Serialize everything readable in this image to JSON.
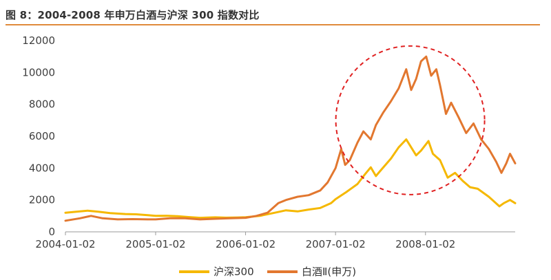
{
  "title": "图 8：2004-2008 年申万白酒与沪深 300 指数对比",
  "colors": {
    "title_rule": "#e08a3a",
    "circle": "#e02020"
  },
  "chart_data": {
    "type": "line",
    "title": "图 8：2004-2008 年申万白酒与沪深 300 指数对比",
    "xlabel": "",
    "ylabel": "",
    "x_ticks": [
      "2004-01-02",
      "2005-01-02",
      "2006-01-02",
      "2007-01-02",
      "2008-01-02"
    ],
    "y_ticks": [
      "0",
      "2000",
      "4000",
      "6000",
      "8000",
      "10000",
      "12000"
    ],
    "ylim": [
      0,
      12000
    ],
    "x_range": [
      "2004-01-02",
      "2008-12-31"
    ],
    "grid": false,
    "legend_position": "bottom",
    "annotation": "red dashed circle highlighting the 2007–2008 peak of 白酒Ⅱ(申万)",
    "series": [
      {
        "name": "沪深300",
        "color": "#f5b800",
        "points": [
          [
            "2004-01-02",
            1200
          ],
          [
            "2004-02-15",
            1260
          ],
          [
            "2004-04-01",
            1330
          ],
          [
            "2004-05-15",
            1260
          ],
          [
            "2004-07-01",
            1180
          ],
          [
            "2004-09-01",
            1120
          ],
          [
            "2004-10-15",
            1100
          ],
          [
            "2004-12-01",
            1050
          ],
          [
            "2005-01-02",
            1000
          ],
          [
            "2005-02-15",
            1010
          ],
          [
            "2005-04-01",
            980
          ],
          [
            "2005-05-15",
            930
          ],
          [
            "2005-07-01",
            880
          ],
          [
            "2005-09-01",
            910
          ],
          [
            "2005-10-15",
            890
          ],
          [
            "2005-12-01",
            900
          ],
          [
            "2006-01-02",
            920
          ],
          [
            "2006-03-01",
            1000
          ],
          [
            "2006-05-01",
            1200
          ],
          [
            "2006-06-15",
            1350
          ],
          [
            "2006-08-01",
            1280
          ],
          [
            "2006-09-15",
            1400
          ],
          [
            "2006-11-01",
            1500
          ],
          [
            "2006-12-15",
            1800
          ],
          [
            "2007-01-02",
            2050
          ],
          [
            "2007-02-15",
            2500
          ],
          [
            "2007-04-01",
            3000
          ],
          [
            "2007-05-01",
            3600
          ],
          [
            "2007-05-25",
            4050
          ],
          [
            "2007-06-15",
            3500
          ],
          [
            "2007-07-01",
            3800
          ],
          [
            "2007-08-15",
            4600
          ],
          [
            "2007-09-15",
            5300
          ],
          [
            "2007-10-16",
            5800
          ],
          [
            "2007-11-01",
            5400
          ],
          [
            "2007-11-25",
            4800
          ],
          [
            "2007-12-15",
            5100
          ],
          [
            "2008-01-14",
            5700
          ],
          [
            "2008-02-01",
            4900
          ],
          [
            "2008-03-01",
            4500
          ],
          [
            "2008-04-01",
            3400
          ],
          [
            "2008-05-01",
            3700
          ],
          [
            "2008-06-01",
            3200
          ],
          [
            "2008-07-01",
            2800
          ],
          [
            "2008-08-01",
            2700
          ],
          [
            "2008-09-15",
            2200
          ],
          [
            "2008-10-28",
            1600
          ],
          [
            "2008-11-15",
            1800
          ],
          [
            "2008-12-10",
            2000
          ],
          [
            "2008-12-31",
            1800
          ]
        ]
      },
      {
        "name": "白酒Ⅱ(申万)",
        "color": "#e2772f",
        "points": [
          [
            "2004-01-02",
            700
          ],
          [
            "2004-03-01",
            850
          ],
          [
            "2004-04-15",
            1000
          ],
          [
            "2004-06-01",
            850
          ],
          [
            "2004-08-01",
            780
          ],
          [
            "2004-10-01",
            800
          ],
          [
            "2004-12-01",
            780
          ],
          [
            "2005-01-02",
            780
          ],
          [
            "2005-03-01",
            850
          ],
          [
            "2005-05-01",
            850
          ],
          [
            "2005-07-01",
            780
          ],
          [
            "2005-09-01",
            820
          ],
          [
            "2005-11-01",
            850
          ],
          [
            "2006-01-02",
            880
          ],
          [
            "2006-02-15",
            1000
          ],
          [
            "2006-04-01",
            1200
          ],
          [
            "2006-05-15",
            1800
          ],
          [
            "2006-06-15",
            2000
          ],
          [
            "2006-08-01",
            2200
          ],
          [
            "2006-09-15",
            2300
          ],
          [
            "2006-11-01",
            2600
          ],
          [
            "2006-12-01",
            3100
          ],
          [
            "2007-01-02",
            4000
          ],
          [
            "2007-01-25",
            5200
          ],
          [
            "2007-02-10",
            4200
          ],
          [
            "2007-03-01",
            4500
          ],
          [
            "2007-04-01",
            5600
          ],
          [
            "2007-04-25",
            6300
          ],
          [
            "2007-05-25",
            5800
          ],
          [
            "2007-06-15",
            6700
          ],
          [
            "2007-07-15",
            7500
          ],
          [
            "2007-08-15",
            8200
          ],
          [
            "2007-09-15",
            9000
          ],
          [
            "2007-10-16",
            10200
          ],
          [
            "2007-11-05",
            8900
          ],
          [
            "2007-11-25",
            9600
          ],
          [
            "2007-12-15",
            10700
          ],
          [
            "2008-01-05",
            11000
          ],
          [
            "2008-01-25",
            9800
          ],
          [
            "2008-02-15",
            10200
          ],
          [
            "2008-03-01",
            9200
          ],
          [
            "2008-03-25",
            7400
          ],
          [
            "2008-04-15",
            8100
          ],
          [
            "2008-05-15",
            7200
          ],
          [
            "2008-06-15",
            6200
          ],
          [
            "2008-07-15",
            6800
          ],
          [
            "2008-08-15",
            5800
          ],
          [
            "2008-09-15",
            5200
          ],
          [
            "2008-10-15",
            4400
          ],
          [
            "2008-11-05",
            3700
          ],
          [
            "2008-11-25",
            4300
          ],
          [
            "2008-12-10",
            4900
          ],
          [
            "2008-12-31",
            4300
          ]
        ]
      }
    ]
  }
}
